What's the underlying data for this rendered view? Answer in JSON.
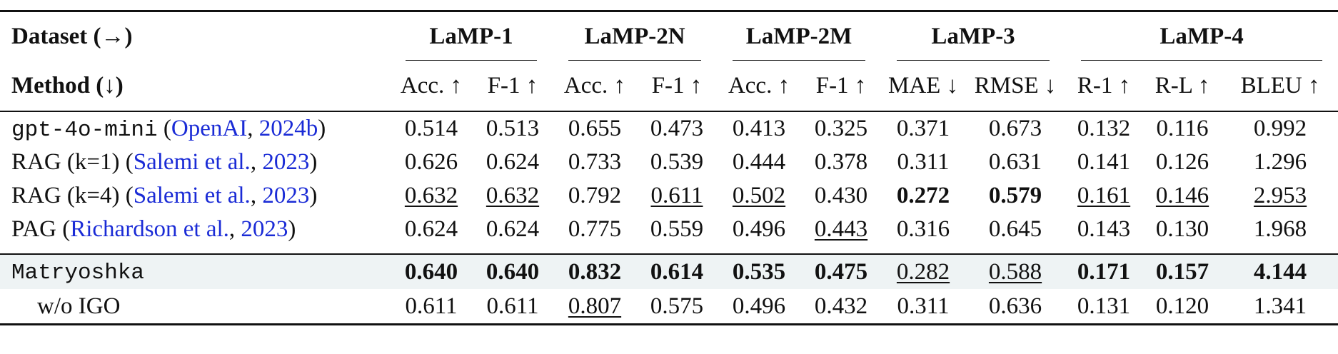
{
  "header": {
    "dataset_label": "Dataset (→)",
    "method_label": "Method (↓)",
    "groups": [
      "LaMP-1",
      "LaMP-2N",
      "LaMP-2M",
      "LaMP-3",
      "LaMP-4"
    ],
    "metrics": [
      "Acc. ↑",
      "F-1 ↑",
      "Acc. ↑",
      "F-1 ↑",
      "Acc. ↑",
      "F-1 ↑",
      "MAE ↓",
      "RMSE ↓",
      "R-1 ↑",
      "R-L ↑",
      "BLEU ↑"
    ]
  },
  "rows": [
    {
      "method_code": "gpt-4o-mini",
      "open_paren": "(",
      "cite_author": "OpenAI",
      "sep": ", ",
      "cite_year": "2024b",
      "close_paren": ")",
      "values": [
        "0.514",
        "0.513",
        "0.655",
        "0.473",
        "0.413",
        "0.325",
        "0.371",
        "0.673",
        "0.132",
        "0.116",
        "0.992"
      ]
    },
    {
      "method_name": "RAG (k=1) (",
      "cite_author": "Salemi et al.",
      "sep": ", ",
      "cite_year": "2023",
      "close_paren": ")",
      "values": [
        "0.626",
        "0.624",
        "0.733",
        "0.539",
        "0.444",
        "0.378",
        "0.311",
        "0.631",
        "0.141",
        "0.126",
        "1.296"
      ]
    },
    {
      "method_name": "RAG (k=4) (",
      "cite_author": "Salemi et al.",
      "sep": ", ",
      "cite_year": "2023",
      "close_paren": ")",
      "values": [
        "0.632",
        "0.632",
        "0.792",
        "0.611",
        "0.502",
        "0.430",
        "0.272",
        "0.579",
        "0.161",
        "0.146",
        "2.953"
      ]
    },
    {
      "method_name": "PAG (",
      "cite_author": "Richardson et al.",
      "sep": ", ",
      "cite_year": "2023",
      "close_paren": ")",
      "values": [
        "0.624",
        "0.624",
        "0.775",
        "0.559",
        "0.496",
        "0.443",
        "0.316",
        "0.645",
        "0.143",
        "0.130",
        "1.968"
      ]
    },
    {
      "method_code": "Matryoshka",
      "values": [
        "0.640",
        "0.640",
        "0.832",
        "0.614",
        "0.535",
        "0.475",
        "0.282",
        "0.588",
        "0.171",
        "0.157",
        "4.144"
      ]
    },
    {
      "method_name": "w/o IGO",
      "values": [
        "0.611",
        "0.611",
        "0.807",
        "0.575",
        "0.496",
        "0.432",
        "0.311",
        "0.636",
        "0.131",
        "0.120",
        "1.341"
      ]
    }
  ],
  "colors": {
    "citation": "#1a2bd6",
    "highlight_row": "#eef3f4"
  }
}
